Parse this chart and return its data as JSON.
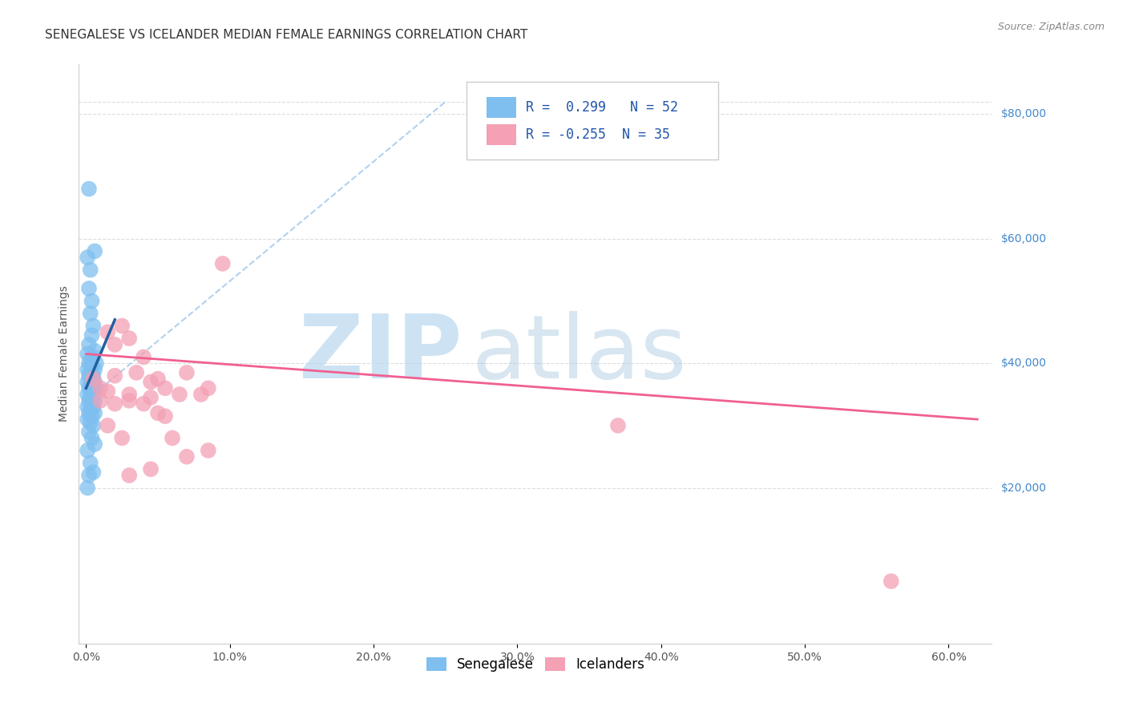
{
  "title": "SENEGALESE VS ICELANDER MEDIAN FEMALE EARNINGS CORRELATION CHART",
  "source": "Source: ZipAtlas.com",
  "ylabel": "Median Female Earnings",
  "xlabel_ticks": [
    "0.0%",
    "10.0%",
    "20.0%",
    "30.0%",
    "40.0%",
    "50.0%",
    "60.0%"
  ],
  "xlabel_vals": [
    0.0,
    0.1,
    0.2,
    0.3,
    0.4,
    0.5,
    0.6
  ],
  "ylabel_ticks": [
    "$20,000",
    "$40,000",
    "$60,000",
    "$80,000"
  ],
  "ylabel_vals": [
    20000,
    40000,
    60000,
    80000
  ],
  "xlim": [
    -0.005,
    0.63
  ],
  "ylim": [
    -5000,
    88000
  ],
  "blue_R": 0.299,
  "blue_N": 52,
  "pink_R": -0.255,
  "pink_N": 35,
  "blue_color": "#7fbfef",
  "pink_color": "#f4a0b5",
  "blue_line_color": "#2060a0",
  "pink_line_color": "#f06090",
  "ref_line_color": "#aaccee",
  "legend_label_blue": "Senegalese",
  "legend_label_pink": "Icelanders",
  "blue_dots": [
    [
      0.002,
      68000
    ],
    [
      0.001,
      57000
    ],
    [
      0.006,
      58000
    ],
    [
      0.003,
      55000
    ],
    [
      0.002,
      52000
    ],
    [
      0.004,
      50000
    ],
    [
      0.003,
      48000
    ],
    [
      0.005,
      46000
    ],
    [
      0.004,
      44500
    ],
    [
      0.002,
      43000
    ],
    [
      0.006,
      42000
    ],
    [
      0.001,
      41500
    ],
    [
      0.005,
      41000
    ],
    [
      0.003,
      40500
    ],
    [
      0.007,
      40000
    ],
    [
      0.002,
      40000
    ],
    [
      0.004,
      39500
    ],
    [
      0.001,
      39000
    ],
    [
      0.006,
      39000
    ],
    [
      0.003,
      38500
    ],
    [
      0.005,
      38000
    ],
    [
      0.002,
      38000
    ],
    [
      0.004,
      37500
    ],
    [
      0.001,
      37000
    ],
    [
      0.006,
      37000
    ],
    [
      0.003,
      36500
    ],
    [
      0.007,
      36000
    ],
    [
      0.002,
      36000
    ],
    [
      0.004,
      35500
    ],
    [
      0.001,
      35000
    ],
    [
      0.005,
      35000
    ],
    [
      0.003,
      34500
    ],
    [
      0.006,
      34000
    ],
    [
      0.002,
      34000
    ],
    [
      0.004,
      33500
    ],
    [
      0.001,
      33000
    ],
    [
      0.005,
      33000
    ],
    [
      0.003,
      32500
    ],
    [
      0.006,
      32000
    ],
    [
      0.002,
      32000
    ],
    [
      0.004,
      31500
    ],
    [
      0.001,
      31000
    ],
    [
      0.003,
      30500
    ],
    [
      0.005,
      30000
    ],
    [
      0.002,
      29000
    ],
    [
      0.004,
      28000
    ],
    [
      0.006,
      27000
    ],
    [
      0.001,
      26000
    ],
    [
      0.003,
      24000
    ],
    [
      0.005,
      22500
    ],
    [
      0.002,
      22000
    ],
    [
      0.001,
      20000
    ]
  ],
  "pink_dots": [
    [
      0.015,
      45000
    ],
    [
      0.02,
      43000
    ],
    [
      0.025,
      46000
    ],
    [
      0.03,
      44000
    ],
    [
      0.035,
      38500
    ],
    [
      0.04,
      41000
    ],
    [
      0.045,
      37000
    ],
    [
      0.005,
      37500
    ],
    [
      0.01,
      36000
    ],
    [
      0.015,
      35500
    ],
    [
      0.02,
      38000
    ],
    [
      0.03,
      35000
    ],
    [
      0.04,
      33500
    ],
    [
      0.05,
      37500
    ],
    [
      0.055,
      36000
    ],
    [
      0.065,
      35000
    ],
    [
      0.07,
      38500
    ],
    [
      0.08,
      35000
    ],
    [
      0.085,
      36000
    ],
    [
      0.095,
      56000
    ],
    [
      0.01,
      34000
    ],
    [
      0.02,
      33500
    ],
    [
      0.03,
      34000
    ],
    [
      0.045,
      34500
    ],
    [
      0.05,
      32000
    ],
    [
      0.055,
      31500
    ],
    [
      0.015,
      30000
    ],
    [
      0.025,
      28000
    ],
    [
      0.06,
      28000
    ],
    [
      0.085,
      26000
    ],
    [
      0.07,
      25000
    ],
    [
      0.03,
      22000
    ],
    [
      0.045,
      23000
    ],
    [
      0.56,
      5000
    ],
    [
      0.37,
      30000
    ]
  ],
  "grid_color": "#dddddd",
  "background_color": "#ffffff",
  "title_fontsize": 11,
  "axis_label_fontsize": 10,
  "tick_fontsize": 10
}
